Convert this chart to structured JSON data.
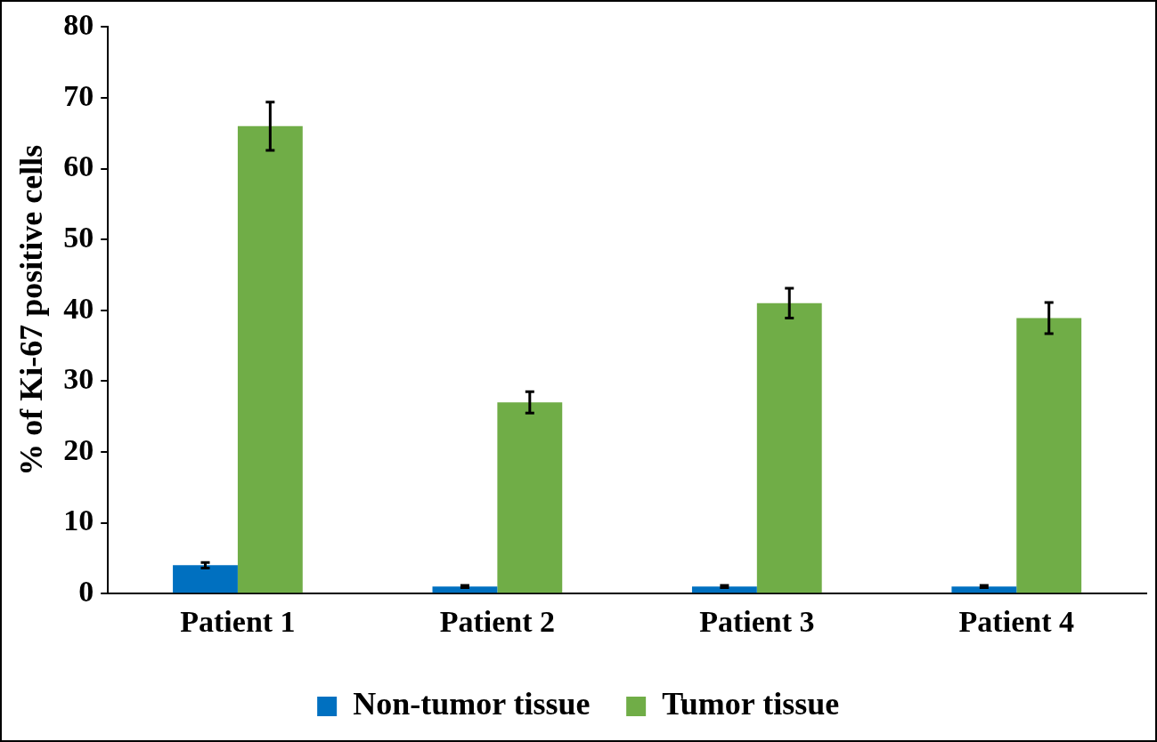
{
  "chart_data": {
    "type": "bar",
    "ylabel": "% of Ki-67 positive cells",
    "categories": [
      "Patient 1",
      "Patient 2",
      "Patient 3",
      "Patient 4"
    ],
    "series": [
      {
        "name": "Non-tumor tissue",
        "color": "#0070c0",
        "values": [
          4,
          1,
          1,
          1
        ],
        "errors": [
          0.4,
          0.15,
          0.15,
          0.15
        ]
      },
      {
        "name": "Tumor tissue",
        "color": "#70ad47",
        "values": [
          66,
          27,
          41,
          38.9
        ],
        "errors": [
          3.4,
          1.5,
          2.1,
          2.2
        ]
      }
    ],
    "ylim": [
      0,
      80
    ],
    "yticks": [
      0,
      10,
      20,
      30,
      40,
      50,
      60,
      70,
      80
    ],
    "grid": false,
    "legend": "bottom"
  }
}
